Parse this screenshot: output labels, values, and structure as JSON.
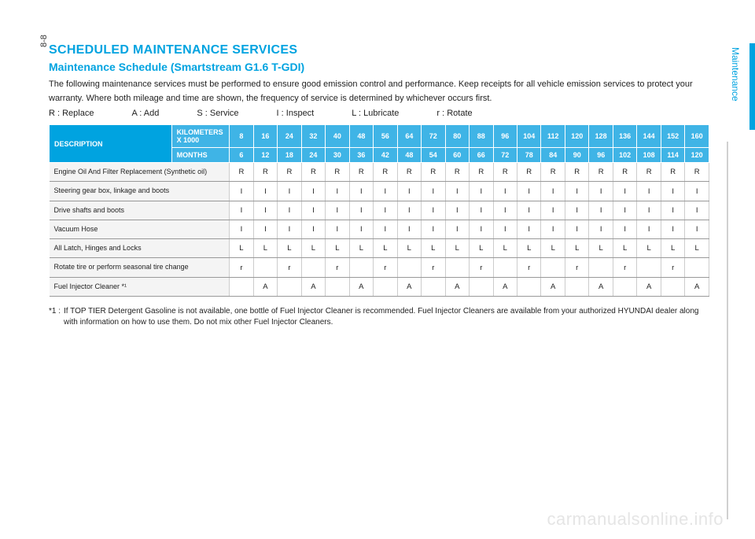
{
  "page_number": "8-8",
  "side_label": "Maintenance",
  "title_main": "SCHEDULED MAINTENANCE SERVICES",
  "title_sub": "Maintenance Schedule (Smartstream G1.6 T-GDI)",
  "intro": "The following maintenance services must be performed to ensure good emission control and performance. Keep receipts for all vehicle emission services to protect your warranty. Where both mileage and time are shown, the frequency of service is determined by whichever occurs first.",
  "legend": [
    "R : Replace",
    "A : Add",
    "S : Service",
    "I : Inspect",
    "L : Lubricate",
    "r : Rotate"
  ],
  "table": {
    "desc_header": "DESCRIPTION",
    "row_head_1": "KILOMETERS X 1000",
    "row_head_2": "MONTHS",
    "km_cols": [
      "8",
      "16",
      "24",
      "32",
      "40",
      "48",
      "56",
      "64",
      "72",
      "80",
      "88",
      "96",
      "104",
      "112",
      "120",
      "128",
      "136",
      "144",
      "152",
      "160"
    ],
    "month_cols": [
      "6",
      "12",
      "18",
      "24",
      "30",
      "36",
      "42",
      "48",
      "54",
      "60",
      "66",
      "72",
      "78",
      "84",
      "90",
      "96",
      "102",
      "108",
      "114",
      "120"
    ],
    "rows": [
      {
        "desc": "Engine Oil And Filter Replacement (Synthetic oil)",
        "vals": [
          "R",
          "R",
          "R",
          "R",
          "R",
          "R",
          "R",
          "R",
          "R",
          "R",
          "R",
          "R",
          "R",
          "R",
          "R",
          "R",
          "R",
          "R",
          "R",
          "R"
        ]
      },
      {
        "desc": "Steering gear box, linkage and boots",
        "vals": [
          "I",
          "I",
          "I",
          "I",
          "I",
          "I",
          "I",
          "I",
          "I",
          "I",
          "I",
          "I",
          "I",
          "I",
          "I",
          "I",
          "I",
          "I",
          "I",
          "I"
        ]
      },
      {
        "desc": "Drive shafts and boots",
        "vals": [
          "I",
          "I",
          "I",
          "I",
          "I",
          "I",
          "I",
          "I",
          "I",
          "I",
          "I",
          "I",
          "I",
          "I",
          "I",
          "I",
          "I",
          "I",
          "I",
          "I"
        ]
      },
      {
        "desc": "Vacuum Hose",
        "vals": [
          "I",
          "I",
          "I",
          "I",
          "I",
          "I",
          "I",
          "I",
          "I",
          "I",
          "I",
          "I",
          "I",
          "I",
          "I",
          "I",
          "I",
          "I",
          "I",
          "I"
        ]
      },
      {
        "desc": "All Latch, Hinges and Locks",
        "vals": [
          "L",
          "L",
          "L",
          "L",
          "L",
          "L",
          "L",
          "L",
          "L",
          "L",
          "L",
          "L",
          "L",
          "L",
          "L",
          "L",
          "L",
          "L",
          "L",
          "L"
        ]
      },
      {
        "desc": "Rotate tire or perform seasonal tire change",
        "vals": [
          "r",
          "",
          "r",
          "",
          "r",
          "",
          "r",
          "",
          "r",
          "",
          "r",
          "",
          "r",
          "",
          "r",
          "",
          "r",
          "",
          "r",
          ""
        ]
      },
      {
        "desc": "Fuel Injector Cleaner *¹",
        "vals": [
          "",
          "A",
          "",
          "A",
          "",
          "A",
          "",
          "A",
          "",
          "A",
          "",
          "A",
          "",
          "A",
          "",
          "A",
          "",
          "A",
          "",
          "A"
        ]
      }
    ]
  },
  "footnote_marker": "*1 :",
  "footnote": "If TOP TIER Detergent Gasoline is not available, one bottle of Fuel Injector Cleaner is recommended. Fuel Injector Cleaners are available from your authorized HYUNDAI dealer along with information on how to use them. Do not mix other Fuel Injector Cleaners.",
  "watermark": "carmanualsonline.info",
  "colors": {
    "accent": "#00a3e0",
    "header_light": "#3fb4e6",
    "row_alt": "#f4f4f4",
    "border": "#999999"
  }
}
